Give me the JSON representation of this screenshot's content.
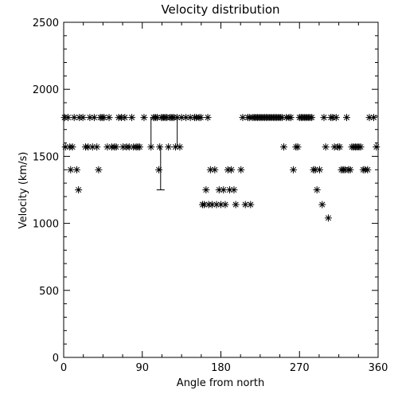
{
  "chart_data": {
    "type": "scatter",
    "title": "Velocity distribution",
    "xlabel": "Angle from north",
    "ylabel": "Velocity (km/s)",
    "xlim": [
      0,
      360
    ],
    "ylim": [
      0,
      2500
    ],
    "xticks": [
      0,
      90,
      180,
      270,
      360
    ],
    "yticks": [
      0,
      500,
      1000,
      1500,
      2000,
      2500
    ],
    "grid": false,
    "marker": "asterisk",
    "series": [
      {
        "points": [
          [
            1,
            1790
          ],
          [
            2,
            1570
          ],
          [
            5,
            1790
          ],
          [
            7,
            1570
          ],
          [
            8,
            1400
          ],
          [
            10,
            1570
          ],
          [
            12,
            1790
          ],
          [
            15,
            1400
          ],
          [
            17,
            1250
          ],
          [
            18,
            1790
          ],
          [
            22,
            1790
          ],
          [
            25,
            1570
          ],
          [
            28,
            1570
          ],
          [
            30,
            1790
          ],
          [
            33,
            1570
          ],
          [
            35,
            1790
          ],
          [
            38,
            1570
          ],
          [
            40,
            1400
          ],
          [
            42,
            1790
          ],
          [
            44,
            1790
          ],
          [
            46,
            1790
          ],
          [
            50,
            1570
          ],
          [
            52,
            1790
          ],
          [
            55,
            1570
          ],
          [
            58,
            1570
          ],
          [
            60,
            1570
          ],
          [
            63,
            1790
          ],
          [
            66,
            1790
          ],
          [
            68,
            1570
          ],
          [
            70,
            1790
          ],
          [
            72,
            1570
          ],
          [
            75,
            1570
          ],
          [
            78,
            1790
          ],
          [
            80,
            1570
          ],
          [
            83,
            1570
          ],
          [
            85,
            1570
          ],
          [
            87,
            1570
          ],
          [
            92,
            1790
          ],
          [
            100,
            1570
          ],
          [
            103,
            1790
          ],
          [
            105,
            1790
          ],
          [
            107,
            1790
          ],
          [
            109,
            1400
          ],
          [
            110,
            1570
          ],
          [
            112,
            1790
          ],
          [
            114,
            1790
          ],
          [
            116,
            1790
          ],
          [
            118,
            1790
          ],
          [
            120,
            1570
          ],
          [
            122,
            1790
          ],
          [
            124,
            1790
          ],
          [
            126,
            1790
          ],
          [
            128,
            1570
          ],
          [
            130,
            1790
          ],
          [
            133,
            1570
          ],
          [
            135,
            1790
          ],
          [
            140,
            1790
          ],
          [
            145,
            1790
          ],
          [
            150,
            1790
          ],
          [
            152,
            1790
          ],
          [
            155,
            1790
          ],
          [
            157,
            1790
          ],
          [
            159,
            1140
          ],
          [
            161,
            1140
          ],
          [
            163,
            1250
          ],
          [
            165,
            1790
          ],
          [
            166,
            1140
          ],
          [
            168,
            1400
          ],
          [
            170,
            1140
          ],
          [
            173,
            1400
          ],
          [
            175,
            1140
          ],
          [
            178,
            1250
          ],
          [
            180,
            1140
          ],
          [
            183,
            1250
          ],
          [
            185,
            1140
          ],
          [
            188,
            1400
          ],
          [
            190,
            1250
          ],
          [
            192,
            1400
          ],
          [
            195,
            1250
          ],
          [
            197,
            1140
          ],
          [
            203,
            1400
          ],
          [
            205,
            1790
          ],
          [
            208,
            1140
          ],
          [
            211,
            1790
          ],
          [
            213,
            1790
          ],
          [
            214,
            1140
          ],
          [
            216,
            1790
          ],
          [
            218,
            1790
          ],
          [
            220,
            1790
          ],
          [
            222,
            1790
          ],
          [
            224,
            1790
          ],
          [
            226,
            1790
          ],
          [
            228,
            1790
          ],
          [
            230,
            1790
          ],
          [
            232,
            1790
          ],
          [
            234,
            1790
          ],
          [
            236,
            1790
          ],
          [
            238,
            1790
          ],
          [
            240,
            1790
          ],
          [
            242,
            1790
          ],
          [
            244,
            1790
          ],
          [
            246,
            1790
          ],
          [
            248,
            1790
          ],
          [
            250,
            1790
          ],
          [
            252,
            1570
          ],
          [
            255,
            1790
          ],
          [
            258,
            1790
          ],
          [
            260,
            1790
          ],
          [
            263,
            1400
          ],
          [
            266,
            1570
          ],
          [
            268,
            1570
          ],
          [
            270,
            1790
          ],
          [
            272,
            1790
          ],
          [
            274,
            1790
          ],
          [
            276,
            1790
          ],
          [
            278,
            1790
          ],
          [
            280,
            1790
          ],
          [
            282,
            1790
          ],
          [
            284,
            1790
          ],
          [
            286,
            1400
          ],
          [
            288,
            1400
          ],
          [
            290,
            1250
          ],
          [
            293,
            1400
          ],
          [
            296,
            1140
          ],
          [
            298,
            1790
          ],
          [
            300,
            1570
          ],
          [
            303,
            1040
          ],
          [
            306,
            1790
          ],
          [
            308,
            1790
          ],
          [
            310,
            1570
          ],
          [
            312,
            1790
          ],
          [
            314,
            1570
          ],
          [
            316,
            1570
          ],
          [
            318,
            1400
          ],
          [
            320,
            1400
          ],
          [
            322,
            1400
          ],
          [
            324,
            1790
          ],
          [
            326,
            1400
          ],
          [
            328,
            1400
          ],
          [
            330,
            1570
          ],
          [
            332,
            1570
          ],
          [
            334,
            1570
          ],
          [
            336,
            1570
          ],
          [
            338,
            1570
          ],
          [
            340,
            1570
          ],
          [
            343,
            1400
          ],
          [
            345,
            1400
          ],
          [
            348,
            1400
          ],
          [
            350,
            1790
          ],
          [
            355,
            1790
          ],
          [
            358,
            1570
          ]
        ]
      }
    ],
    "annotations": [
      {
        "type": "bracket",
        "x": [
          100,
          130
        ],
        "y_top": 1790,
        "y_bottom": 1570
      },
      {
        "type": "error_bar",
        "x": 111,
        "y_top": 1570,
        "y_bottom": 1250
      }
    ]
  }
}
